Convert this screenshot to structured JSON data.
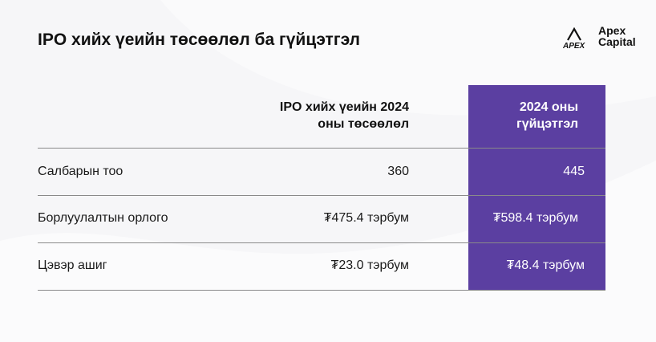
{
  "title": "IPO хийх үеийн төсөөлөл ба гүйцэтгэл",
  "logo": {
    "line1": "Apex",
    "line2": "Capital",
    "mark_text": "APEX"
  },
  "colors": {
    "accent": "#5b3fa1",
    "text": "#1a1a1a",
    "background": "#f6f6f8",
    "divider": "#8a8a8a"
  },
  "table": {
    "headers": {
      "ipo_line1": "IPO хийх үеийн 2024",
      "ipo_line2": "оны төсөөлөл",
      "y2024_line1": "2024 оны",
      "y2024_line2": "гүйцэтгэл"
    },
    "rows": [
      {
        "label": "Салбарын тоо",
        "ipo": "360",
        "actual": "445"
      },
      {
        "label": "Борлуулалтын орлого",
        "ipo": "₮475.4 тэрбум",
        "actual": "₮598.4 тэрбум"
      },
      {
        "label": "Цэвэр ашиг",
        "ipo": "₮23.0 тэрбум",
        "actual": "₮48.4 тэрбум"
      }
    ]
  }
}
